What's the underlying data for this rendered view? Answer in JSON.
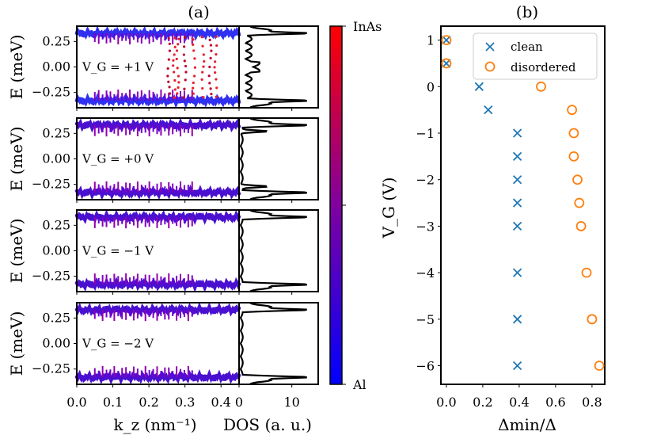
{
  "panel_a": {
    "title": "(a)",
    "ylabel": "E (meV)",
    "xlabel_bands": "k_z (nm⁻¹)",
    "xlabel_dos": "DOS (a. u.)",
    "x_ticks": [
      "0.0",
      "0.1",
      "0.2",
      "0.3",
      "0.4"
    ],
    "dos_ticks": [
      "0",
      "10"
    ],
    "y_ticks": [
      "0.25",
      "0.00",
      "−0.25"
    ],
    "colorbar": {
      "top_label": "InAs",
      "bottom_label": "Al",
      "color_low": "#0000ff",
      "color_high": "#ff0000"
    },
    "subpanels": [
      {
        "gate_label": "V_G = +1 V",
        "name": "vg-plus1"
      },
      {
        "gate_label": "V_G = +0 V",
        "name": "vg-0"
      },
      {
        "gate_label": "V_G = −1 V",
        "name": "vg-minus1"
      },
      {
        "gate_label": "V_G = −2 V",
        "name": "vg-minus2"
      }
    ]
  },
  "chart_data": [
    {
      "type": "line",
      "title": "(a)",
      "xlabel": "k_z (nm^-1)",
      "ylabel": "E (meV)",
      "xlim": [
        0,
        0.45
      ],
      "ylim": [
        -0.4,
        0.4
      ],
      "series": [
        {
          "name": "V_G = +1 V",
          "gap_edges_meV": [
            0.33,
            -0.33
          ],
          "in_gap_states": true
        },
        {
          "name": "V_G = +0 V",
          "gap_edges_meV": [
            0.33,
            -0.33
          ],
          "in_gap_states": false
        },
        {
          "name": "V_G = -1 V",
          "gap_edges_meV": [
            0.33,
            -0.33
          ],
          "in_gap_states": false
        },
        {
          "name": "V_G = -2 V",
          "gap_edges_meV": [
            0.33,
            -0.33
          ],
          "in_gap_states": false
        }
      ],
      "dos_xlim": [
        0,
        15
      ],
      "colorbar_range": [
        "Al",
        "InAs"
      ]
    },
    {
      "type": "scatter",
      "title": "(b)",
      "xlabel": "Δmin/Δ",
      "ylabel": "V_G (V)",
      "xlim": [
        -0.03,
        0.87
      ],
      "ylim": [
        -6.4,
        1.3
      ],
      "x_ticks": [
        "0.0",
        "0.2",
        "0.4",
        "0.6",
        "0.8"
      ],
      "y_ticks": [
        "1",
        "0",
        "−1",
        "−2",
        "−3",
        "−4",
        "−5",
        "−6"
      ],
      "legend_position": "top-right",
      "series": [
        {
          "name": "clean",
          "marker": "x",
          "color": "#1f77b4",
          "x": [
            0.0,
            0.0,
            0.18,
            0.23,
            0.39,
            0.39,
            0.39,
            0.39,
            0.39,
            0.39,
            0.39,
            0.39
          ],
          "y": [
            1,
            0.5,
            0,
            -0.5,
            -1,
            -1.5,
            -2,
            -2.5,
            -3,
            -4,
            -5,
            -6
          ]
        },
        {
          "name": "disordered",
          "marker": "o",
          "color": "#ff7f0e",
          "x": [
            0.0,
            0.0,
            0.52,
            0.69,
            0.7,
            0.7,
            0.72,
            0.73,
            0.74,
            0.77,
            0.8,
            0.84
          ],
          "y": [
            1,
            0.5,
            0,
            -0.5,
            -1,
            -1.5,
            -2,
            -2.5,
            -3,
            -4,
            -5,
            -6
          ]
        }
      ]
    }
  ]
}
